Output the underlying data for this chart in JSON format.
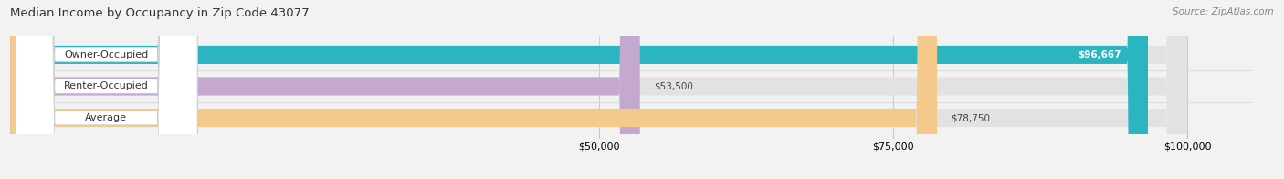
{
  "title": "Median Income by Occupancy in Zip Code 43077",
  "source": "Source: ZipAtlas.com",
  "categories": [
    "Owner-Occupied",
    "Renter-Occupied",
    "Average"
  ],
  "values": [
    96667,
    53500,
    78750
  ],
  "bar_colors": [
    "#2ab5c0",
    "#c4a8d0",
    "#f5c98a"
  ],
  "value_label_colors": [
    "#ffffff",
    "#444444",
    "#444444"
  ],
  "value_label_bg": [
    "#2ab5c0",
    null,
    null
  ],
  "background_color": "#f2f2f2",
  "bar_bg_color": "#e2e2e2",
  "data_min": 0,
  "data_max": 100000,
  "xticks": [
    50000,
    75000,
    100000
  ],
  "figsize": [
    14.06,
    1.96
  ],
  "dpi": 100
}
